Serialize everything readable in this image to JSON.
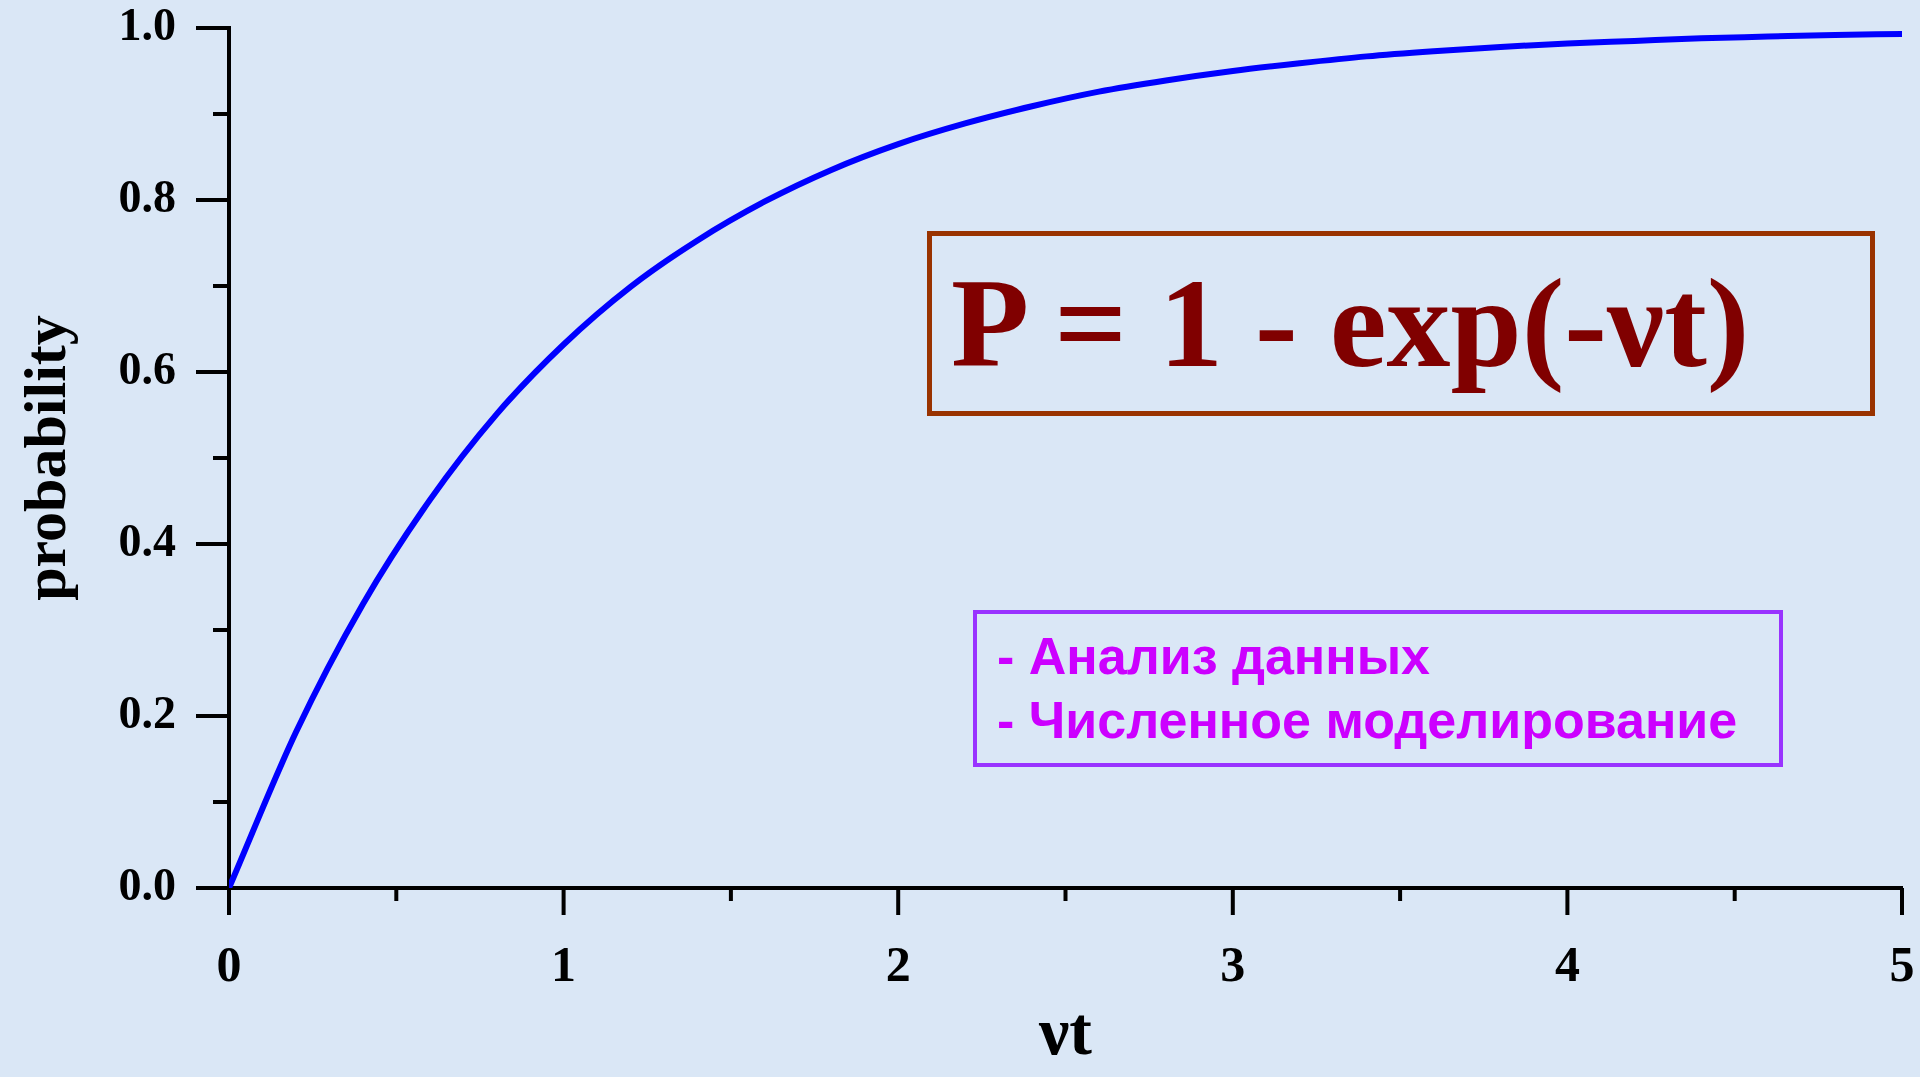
{
  "chart_data": {
    "type": "line",
    "xlabel": "νt",
    "ylabel": "probability",
    "x": [
      0,
      0.2,
      0.4,
      0.6,
      0.8,
      1,
      1.2,
      1.4,
      1.6,
      1.8,
      2,
      2.2,
      2.4,
      2.6,
      2.8,
      3,
      3.2,
      3.4,
      3.6,
      3.8,
      4,
      4.2,
      4.4,
      4.6,
      4.8,
      5
    ],
    "series": [
      {
        "color": "#0000ff",
        "values": [
          0,
          0.181,
          0.33,
          0.451,
          0.551,
          0.632,
          0.699,
          0.753,
          0.798,
          0.835,
          0.865,
          0.889,
          0.909,
          0.926,
          0.939,
          0.95,
          0.959,
          0.967,
          0.973,
          0.978,
          0.982,
          0.985,
          0.988,
          0.99,
          0.992,
          0.993
        ]
      }
    ],
    "xlim": [
      0,
      5
    ],
    "ylim": [
      0,
      1
    ],
    "xticks": [
      0,
      {
        "value": 0.5,
        "label": null
      },
      1,
      {
        "value": 1.5,
        "label": null
      },
      2,
      {
        "value": 2.5,
        "label": null
      },
      3,
      {
        "value": 3.5,
        "label": null
      },
      4,
      {
        "value": 4.5,
        "label": null
      },
      5
    ],
    "yticks": [
      {
        "value": 0,
        "label": "0.0"
      },
      {
        "value": 0.1,
        "label": null
      },
      {
        "value": 0.2,
        "label": "0.2"
      },
      {
        "value": 0.3,
        "label": null
      },
      {
        "value": 0.4,
        "label": "0.4"
      },
      {
        "value": 0.5,
        "label": null
      },
      {
        "value": 0.6,
        "label": "0.6"
      },
      {
        "value": 0.7,
        "label": null
      },
      {
        "value": 0.8,
        "label": "0.8"
      },
      {
        "value": 0.9,
        "label": null
      },
      {
        "value": 1,
        "label": "1.0"
      }
    ],
    "marker": "none",
    "line_style": "solid",
    "annotations": [
      "P = 1 - exp(-νt)",
      "- Анализ данных",
      "- Численное моделирование"
    ]
  }
}
